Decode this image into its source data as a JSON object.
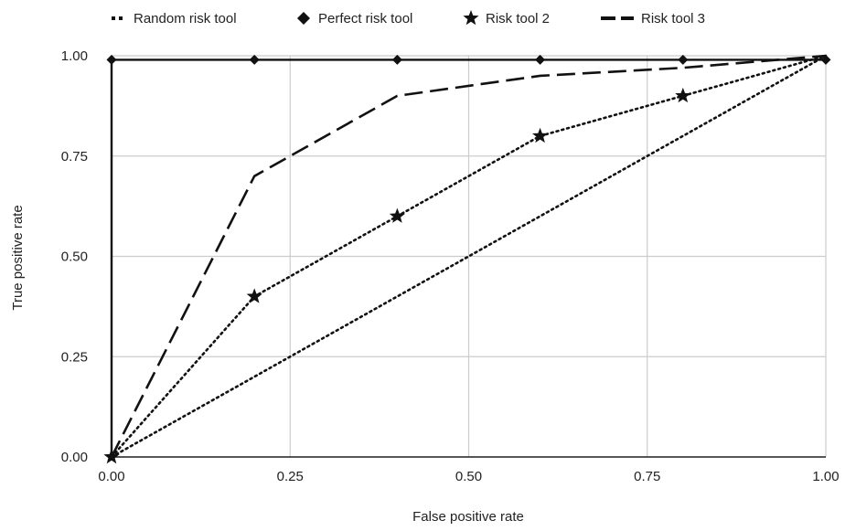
{
  "chart_data": {
    "type": "line",
    "title": "",
    "xlabel": "False positive rate",
    "ylabel": "True positive rate",
    "xlim": [
      0,
      1
    ],
    "ylim": [
      0,
      1
    ],
    "x_ticks": [
      "0.00",
      "0.25",
      "0.50",
      "0.75",
      "1.00"
    ],
    "y_ticks": [
      "0.00",
      "0.25",
      "0.50",
      "0.75",
      "1.00"
    ],
    "grid": true,
    "legend_position": "top",
    "series": [
      {
        "name": "Random risk tool",
        "style": "dotted",
        "marker": "none",
        "points": [
          [
            0,
            0
          ],
          [
            1,
            1
          ]
        ]
      },
      {
        "name": "Perfect risk tool",
        "style": "solid",
        "marker": "diamond",
        "points": [
          [
            0,
            0
          ],
          [
            0,
            0.99
          ],
          [
            0.2,
            0.99
          ],
          [
            0.4,
            0.99
          ],
          [
            0.6,
            0.99
          ],
          [
            0.8,
            0.99
          ],
          [
            1,
            0.99
          ]
        ]
      },
      {
        "name": "Risk tool 2",
        "style": "dotted",
        "marker": "star",
        "points": [
          [
            0,
            0
          ],
          [
            0.2,
            0.4
          ],
          [
            0.4,
            0.6
          ],
          [
            0.6,
            0.8
          ],
          [
            0.8,
            0.9
          ],
          [
            1,
            1
          ]
        ]
      },
      {
        "name": "Risk tool 3",
        "style": "dashed",
        "marker": "none",
        "points": [
          [
            0,
            0
          ],
          [
            0.2,
            0.7
          ],
          [
            0.4,
            0.9
          ],
          [
            0.6,
            0.95
          ],
          [
            0.8,
            0.97
          ],
          [
            1,
            1
          ]
        ]
      }
    ]
  }
}
